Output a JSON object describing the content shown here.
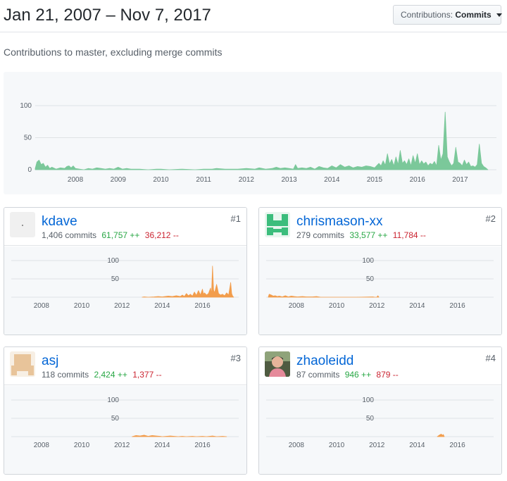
{
  "header": {
    "date_range": "Jan 21, 2007 – Nov 7, 2017",
    "select_label": "Contributions:",
    "select_value": "Commits"
  },
  "subtitle": "Contributions to master, excluding merge commits",
  "colors": {
    "overall": "#7bc89a",
    "contributor": "#f29d4c",
    "grid": "#dfe2e5",
    "link": "#0366d6",
    "additions": "#28a745",
    "deletions": "#cb2431"
  },
  "chart_data": [
    {
      "type": "area",
      "ylim": [
        0,
        100
      ],
      "y_ticks": [
        "100",
        "50",
        "0"
      ],
      "x_ticks": [
        "2008",
        "2009",
        "2010",
        "2011",
        "2012",
        "2013",
        "2014",
        "2015",
        "2016",
        "2017"
      ],
      "x_range": [
        2007.06,
        2017.85
      ],
      "series": [
        {
          "values": [
            [
              2007.06,
              2
            ],
            [
              2007.1,
              12
            ],
            [
              2007.15,
              15
            ],
            [
              2007.2,
              8
            ],
            [
              2007.25,
              10
            ],
            [
              2007.3,
              4
            ],
            [
              2007.35,
              7
            ],
            [
              2007.4,
              2
            ],
            [
              2007.45,
              4
            ],
            [
              2007.55,
              1
            ],
            [
              2007.65,
              3
            ],
            [
              2007.75,
              2
            ],
            [
              2007.8,
              5
            ],
            [
              2007.85,
              6
            ],
            [
              2007.9,
              3
            ],
            [
              2007.95,
              6
            ],
            [
              2008.0,
              2
            ],
            [
              2008.1,
              1
            ],
            [
              2008.2,
              0
            ],
            [
              2008.3,
              2
            ],
            [
              2008.4,
              1
            ],
            [
              2008.5,
              3
            ],
            [
              2008.6,
              2
            ],
            [
              2008.7,
              1
            ],
            [
              2008.8,
              2
            ],
            [
              2008.9,
              1
            ],
            [
              2009.0,
              4
            ],
            [
              2009.1,
              1
            ],
            [
              2009.2,
              2
            ],
            [
              2009.3,
              1
            ],
            [
              2009.5,
              1
            ],
            [
              2009.7,
              0
            ],
            [
              2009.9,
              1
            ],
            [
              2010.0,
              1
            ],
            [
              2010.2,
              0
            ],
            [
              2010.5,
              1
            ],
            [
              2010.8,
              0
            ],
            [
              2011.0,
              1
            ],
            [
              2011.2,
              1
            ],
            [
              2011.3,
              2
            ],
            [
              2011.5,
              1
            ],
            [
              2011.8,
              1
            ],
            [
              2012.0,
              2
            ],
            [
              2012.2,
              1
            ],
            [
              2012.3,
              3
            ],
            [
              2012.45,
              1
            ],
            [
              2012.6,
              2
            ],
            [
              2012.7,
              4
            ],
            [
              2012.8,
              2
            ],
            [
              2012.9,
              3
            ],
            [
              2013.0,
              2
            ],
            [
              2013.1,
              1
            ],
            [
              2013.15,
              8
            ],
            [
              2013.2,
              2
            ],
            [
              2013.3,
              3
            ],
            [
              2013.4,
              2
            ],
            [
              2013.5,
              4
            ],
            [
              2013.6,
              1
            ],
            [
              2013.7,
              5
            ],
            [
              2013.8,
              3
            ],
            [
              2013.9,
              2
            ],
            [
              2014.0,
              6
            ],
            [
              2014.1,
              3
            ],
            [
              2014.2,
              8
            ],
            [
              2014.3,
              4
            ],
            [
              2014.4,
              6
            ],
            [
              2014.5,
              3
            ],
            [
              2014.6,
              5
            ],
            [
              2014.7,
              4
            ],
            [
              2014.8,
              6
            ],
            [
              2014.9,
              5
            ],
            [
              2015.0,
              3
            ],
            [
              2015.1,
              10
            ],
            [
              2015.15,
              6
            ],
            [
              2015.2,
              14
            ],
            [
              2015.25,
              7
            ],
            [
              2015.3,
              25
            ],
            [
              2015.35,
              9
            ],
            [
              2015.4,
              16
            ],
            [
              2015.45,
              6
            ],
            [
              2015.5,
              20
            ],
            [
              2015.55,
              8
            ],
            [
              2015.6,
              30
            ],
            [
              2015.65,
              10
            ],
            [
              2015.7,
              14
            ],
            [
              2015.75,
              8
            ],
            [
              2015.8,
              17
            ],
            [
              2015.85,
              6
            ],
            [
              2015.9,
              22
            ],
            [
              2015.95,
              10
            ],
            [
              2016.0,
              25
            ],
            [
              2016.05,
              8
            ],
            [
              2016.1,
              14
            ],
            [
              2016.15,
              9
            ],
            [
              2016.2,
              12
            ],
            [
              2016.25,
              6
            ],
            [
              2016.3,
              10
            ],
            [
              2016.35,
              8
            ],
            [
              2016.4,
              13
            ],
            [
              2016.45,
              6
            ],
            [
              2016.5,
              38
            ],
            [
              2016.55,
              15
            ],
            [
              2016.6,
              25
            ],
            [
              2016.65,
              90
            ],
            [
              2016.7,
              20
            ],
            [
              2016.75,
              12
            ],
            [
              2016.8,
              6
            ],
            [
              2016.85,
              10
            ],
            [
              2016.9,
              35
            ],
            [
              2016.95,
              12
            ],
            [
              2017.0,
              10
            ],
            [
              2017.05,
              6
            ],
            [
              2017.1,
              15
            ],
            [
              2017.15,
              8
            ],
            [
              2017.2,
              12
            ],
            [
              2017.25,
              5
            ],
            [
              2017.3,
              6
            ],
            [
              2017.35,
              4
            ],
            [
              2017.4,
              8
            ],
            [
              2017.45,
              40
            ],
            [
              2017.5,
              10
            ],
            [
              2017.55,
              5
            ],
            [
              2017.6,
              3
            ],
            [
              2017.65,
              0
            ]
          ]
        }
      ]
    },
    {
      "type": "area",
      "ylim": [
        0,
        100
      ],
      "y_ticks": [
        "100",
        "50"
      ],
      "x_ticks": [
        "2008",
        "2010",
        "2012",
        "2014",
        "2016"
      ],
      "x_range": [
        2006.5,
        2017.8
      ],
      "series": [
        {
          "values": [
            [
              2013.0,
              0
            ],
            [
              2013.1,
              1
            ],
            [
              2013.3,
              0
            ],
            [
              2013.6,
              1
            ],
            [
              2013.8,
              2
            ],
            [
              2014.0,
              1
            ],
            [
              2014.3,
              3
            ],
            [
              2014.5,
              2
            ],
            [
              2014.7,
              4
            ],
            [
              2014.9,
              2
            ],
            [
              2015.0,
              6
            ],
            [
              2015.1,
              2
            ],
            [
              2015.2,
              10
            ],
            [
              2015.3,
              4
            ],
            [
              2015.4,
              8
            ],
            [
              2015.5,
              3
            ],
            [
              2015.6,
              14
            ],
            [
              2015.7,
              5
            ],
            [
              2015.8,
              18
            ],
            [
              2015.9,
              6
            ],
            [
              2016.0,
              22
            ],
            [
              2016.05,
              8
            ],
            [
              2016.1,
              12
            ],
            [
              2016.2,
              6
            ],
            [
              2016.3,
              10
            ],
            [
              2016.4,
              25
            ],
            [
              2016.45,
              8
            ],
            [
              2016.5,
              85
            ],
            [
              2016.55,
              20
            ],
            [
              2016.6,
              12
            ],
            [
              2016.7,
              35
            ],
            [
              2016.8,
              10
            ],
            [
              2016.9,
              6
            ],
            [
              2017.0,
              8
            ],
            [
              2017.1,
              4
            ],
            [
              2017.2,
              12
            ],
            [
              2017.3,
              6
            ],
            [
              2017.4,
              40
            ],
            [
              2017.45,
              10
            ],
            [
              2017.5,
              3
            ],
            [
              2017.55,
              0
            ]
          ]
        }
      ]
    },
    {
      "type": "area",
      "ylim": [
        0,
        100
      ],
      "y_ticks": [
        "100",
        "50"
      ],
      "x_ticks": [
        "2008",
        "2010",
        "2012",
        "2014",
        "2016"
      ],
      "x_range": [
        2006.5,
        2017.8
      ],
      "series": [
        {
          "values": [
            [
              2006.6,
              0
            ],
            [
              2006.65,
              8
            ],
            [
              2006.75,
              6
            ],
            [
              2006.85,
              3
            ],
            [
              2006.95,
              4
            ],
            [
              2007.05,
              2
            ],
            [
              2007.15,
              3
            ],
            [
              2007.3,
              1
            ],
            [
              2007.45,
              4
            ],
            [
              2007.6,
              1
            ],
            [
              2007.75,
              3
            ],
            [
              2007.9,
              2
            ],
            [
              2008.05,
              1
            ],
            [
              2008.3,
              2
            ],
            [
              2008.5,
              1
            ],
            [
              2008.8,
              1
            ],
            [
              2009.0,
              2
            ],
            [
              2009.2,
              0
            ],
            [
              2010.0,
              0
            ],
            [
              2011.0,
              0
            ],
            [
              2011.8,
              1
            ],
            [
              2011.9,
              0
            ],
            [
              2012.0,
              0
            ],
            [
              2012.05,
              4
            ],
            [
              2012.1,
              0
            ]
          ]
        }
      ]
    },
    {
      "type": "area",
      "ylim": [
        0,
        100
      ],
      "y_ticks": [
        "100",
        "50"
      ],
      "x_ticks": [
        "2008",
        "2010",
        "2012",
        "2014",
        "2016"
      ],
      "x_range": [
        2006.5,
        2017.8
      ],
      "series": [
        {
          "values": [
            [
              2012.5,
              0
            ],
            [
              2012.7,
              3
            ],
            [
              2012.9,
              2
            ],
            [
              2013.1,
              4
            ],
            [
              2013.3,
              1
            ],
            [
              2013.5,
              3
            ],
            [
              2013.7,
              2
            ],
            [
              2013.9,
              1
            ],
            [
              2014.0,
              0
            ],
            [
              2014.2,
              1
            ],
            [
              2014.4,
              2
            ],
            [
              2014.6,
              1
            ],
            [
              2014.8,
              0
            ],
            [
              2015.0,
              1
            ],
            [
              2015.2,
              0
            ],
            [
              2015.5,
              1
            ],
            [
              2015.7,
              0
            ],
            [
              2016.0,
              1
            ],
            [
              2016.2,
              0
            ],
            [
              2016.5,
              2
            ],
            [
              2016.7,
              0
            ],
            [
              2017.0,
              1
            ],
            [
              2017.2,
              0
            ]
          ]
        }
      ]
    },
    {
      "type": "area",
      "ylim": [
        0,
        100
      ],
      "y_ticks": [
        "100",
        "50"
      ],
      "x_ticks": [
        "2008",
        "2010",
        "2012",
        "2014",
        "2016"
      ],
      "x_range": [
        2006.5,
        2017.8
      ],
      "series": [
        {
          "values": [
            [
              2015.0,
              0
            ],
            [
              2015.1,
              4
            ],
            [
              2015.2,
              7
            ],
            [
              2015.25,
              3
            ],
            [
              2015.3,
              6
            ],
            [
              2015.35,
              0
            ]
          ]
        }
      ]
    }
  ],
  "contributors": [
    {
      "name": "kdave",
      "commits": "1,406 commits",
      "additions": "61,757 ++",
      "deletions": "36,212 --",
      "rank": "#1"
    },
    {
      "name": "chrismason-xx",
      "commits": "279 commits",
      "additions": "33,577 ++",
      "deletions": "11,784 --",
      "rank": "#2"
    },
    {
      "name": "asj",
      "commits": "118 commits",
      "additions": "2,424 ++",
      "deletions": "1,377 --",
      "rank": "#3"
    },
    {
      "name": "zhaoleidd",
      "commits": "87 commits",
      "additions": "946 ++",
      "deletions": "879 --",
      "rank": "#4"
    }
  ]
}
